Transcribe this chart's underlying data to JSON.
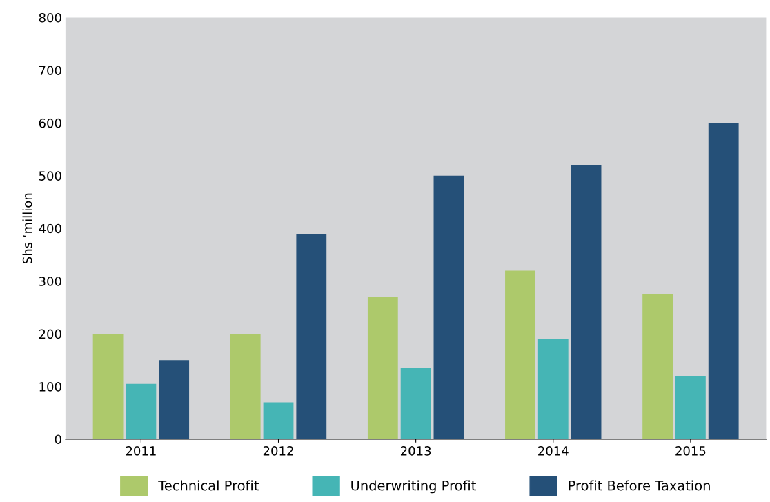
{
  "chart_data": {
    "type": "bar",
    "ylabel": "Shs ‘million",
    "categories": [
      "2011",
      "2012",
      "2013",
      "2014",
      "2015"
    ],
    "series": [
      {
        "name": "Technical Profit",
        "color": "#adc96b",
        "values": [
          200,
          200,
          270,
          320,
          275
        ]
      },
      {
        "name": "Underwriting Profit",
        "color": "#45b5b5",
        "values": [
          105,
          70,
          135,
          190,
          120
        ]
      },
      {
        "name": "Profit Before Taxation",
        "color": "#255078",
        "values": [
          150,
          390,
          500,
          520,
          600
        ]
      }
    ],
    "ylim": [
      0,
      800
    ],
    "yticks": [
      0,
      100,
      200,
      300,
      400,
      500,
      600,
      700,
      800
    ],
    "grid": false,
    "legend": "bottom"
  }
}
